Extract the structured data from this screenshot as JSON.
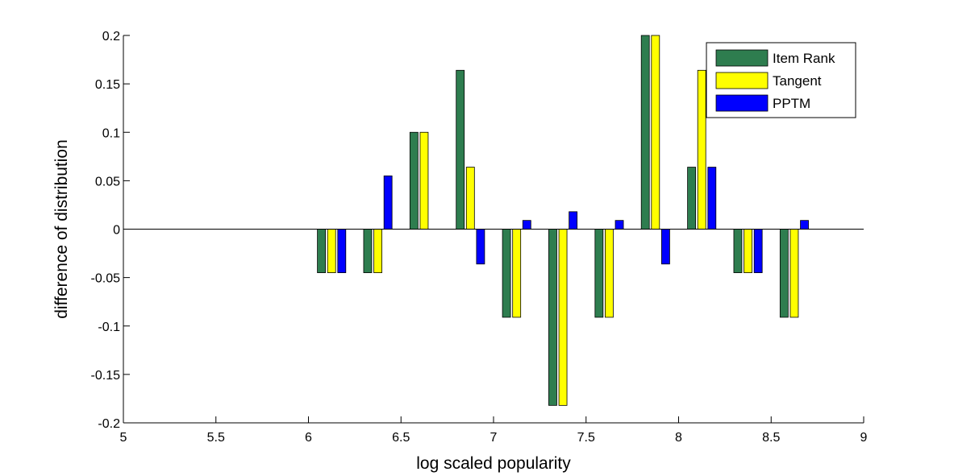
{
  "chart_data": {
    "type": "bar",
    "xlabel": "log scaled popularity",
    "ylabel": "difference of distribution",
    "xlim": [
      5,
      9
    ],
    "ylim": [
      -0.2,
      0.2
    ],
    "xticks": [
      "5",
      "5.5",
      "6",
      "6.5",
      "7",
      "7.5",
      "8",
      "8.5",
      "9"
    ],
    "yticks": [
      "-0.2",
      "-0.15",
      "-0.1",
      "-0.05",
      "0",
      "0.05",
      "0.1",
      "0.15",
      "0.2"
    ],
    "grid": false,
    "legend_position": "top-right",
    "categories": [
      6.125,
      6.375,
      6.625,
      6.875,
      7.125,
      7.375,
      7.625,
      7.875,
      8.125,
      8.375,
      8.625
    ],
    "series": [
      {
        "name": "Item Rank",
        "color": "#2e7d4f",
        "values": [
          -0.045,
          -0.045,
          0.1,
          0.164,
          -0.091,
          -0.182,
          -0.091,
          0.2,
          0.064,
          -0.045,
          -0.091
        ]
      },
      {
        "name": "Tangent",
        "color": "#ffff00",
        "values": [
          -0.045,
          -0.045,
          0.1,
          0.064,
          -0.091,
          -0.182,
          -0.091,
          0.2,
          0.164,
          -0.045,
          -0.091
        ]
      },
      {
        "name": "PPTM",
        "color": "#0000ff",
        "values": [
          -0.045,
          0.055,
          0,
          -0.036,
          0.009,
          0.018,
          0.009,
          -0.036,
          0.064,
          -0.045,
          0.009
        ]
      }
    ]
  }
}
